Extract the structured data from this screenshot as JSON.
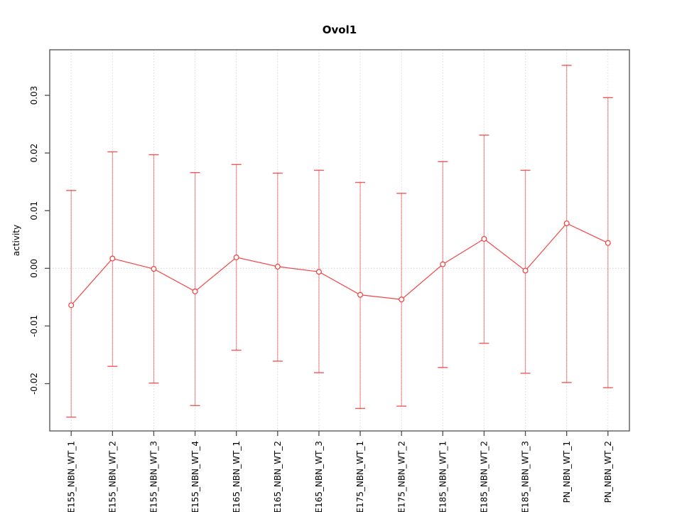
{
  "figure": {
    "background": "#ffffff"
  },
  "chart_data": {
    "type": "line",
    "title": "Ovol1",
    "xlabel": "",
    "ylabel": "activity",
    "legend": "none",
    "marker": "open-circle",
    "categories": [
      "E155_NBN_WT_1",
      "E155_NBN_WT_2",
      "E155_NBN_WT_3",
      "E155_NBN_WT_4",
      "E165_NBN_WT_1",
      "E165_NBN_WT_2",
      "E165_NBN_WT_3",
      "E175_NBN_WT_1",
      "E175_NBN_WT_2",
      "E185_NBN_WT_1",
      "E185_NBN_WT_2",
      "E185_NBN_WT_3",
      "PN_NBN_WT_1",
      "PN_NBN_WT_2"
    ],
    "series": [
      {
        "name": "activity",
        "values": [
          -0.0064,
          0.0017,
          -0.0001,
          -0.004,
          0.0019,
          0.0003,
          -0.0006,
          -0.0046,
          -0.0054,
          0.0007,
          0.0051,
          -0.0004,
          0.0078,
          0.0044
        ],
        "upper": [
          0.0135,
          0.0202,
          0.0197,
          0.0166,
          0.018,
          0.0165,
          0.017,
          0.0149,
          0.013,
          0.0185,
          0.0231,
          0.017,
          0.0352,
          0.0296
        ],
        "lower": [
          -0.0258,
          -0.017,
          -0.0199,
          -0.0238,
          -0.0142,
          -0.0161,
          -0.0181,
          -0.0243,
          -0.0239,
          -0.0172,
          -0.013,
          -0.0182,
          -0.0198,
          -0.0207
        ]
      }
    ],
    "y_ticks": [
      -0.02,
      -0.01,
      0,
      0.01,
      0.02,
      0.03
    ],
    "y_tick_labels": [
      "-0.02",
      "-0.01",
      "0.00",
      "0.01",
      "0.02",
      "0.03"
    ],
    "ylim": [
      -0.0282,
      0.0379
    ],
    "grid": {
      "vertical_dotted_per_category": true,
      "horizontal_zero_line_dotted": true
    },
    "colors": {
      "series": "#f23c3c",
      "error_bar": "#f23c3c",
      "grid": "#d9d9d9",
      "zero_line": "#d4d4d4",
      "frame": "#4d4d4d",
      "text": "#000000"
    }
  }
}
